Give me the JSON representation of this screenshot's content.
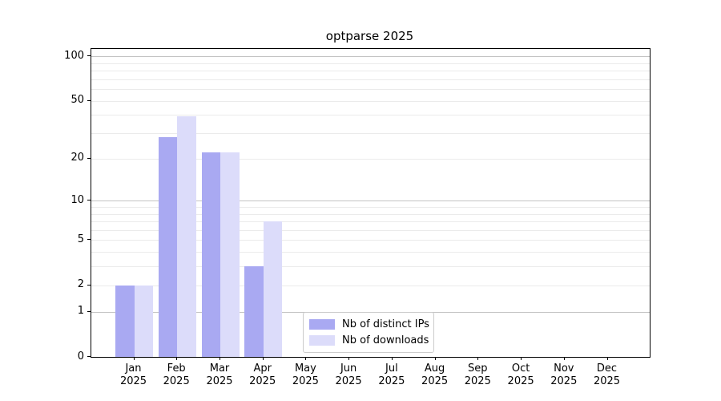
{
  "figure_title": "optparse 2025",
  "chart_data": {
    "type": "bar",
    "title": "optparse 2025",
    "categories": [
      "Jan",
      "Feb",
      "Mar",
      "Apr",
      "May",
      "Jun",
      "Jul",
      "Aug",
      "Sep",
      "Oct",
      "Nov",
      "Dec"
    ],
    "category_year": "2025",
    "series": [
      {
        "name": "Nb of distinct IPs",
        "color": "#a9a9f2",
        "values": [
          2,
          28,
          22,
          3,
          0,
          0,
          0,
          0,
          0,
          0,
          0,
          0
        ]
      },
      {
        "name": "Nb of downloads",
        "color": "#dcdcfa",
        "values": [
          2,
          39,
          22,
          7,
          0,
          0,
          0,
          0,
          0,
          0,
          0,
          0
        ]
      }
    ],
    "yscale": "log1p",
    "ylim": [
      0,
      112
    ],
    "yticks": [
      0,
      1,
      2,
      5,
      10,
      20,
      50,
      100
    ],
    "grid": {
      "major_values": [
        1,
        10,
        100
      ],
      "minor_values": [
        2,
        3,
        4,
        5,
        6,
        7,
        8,
        9,
        20,
        30,
        40,
        50,
        60,
        70,
        80,
        90
      ],
      "major_color": "#c4c4c4",
      "minor_color": "#ebebeb"
    },
    "legend_position": "lower center-left inside plot",
    "spine_color": "#000000"
  }
}
